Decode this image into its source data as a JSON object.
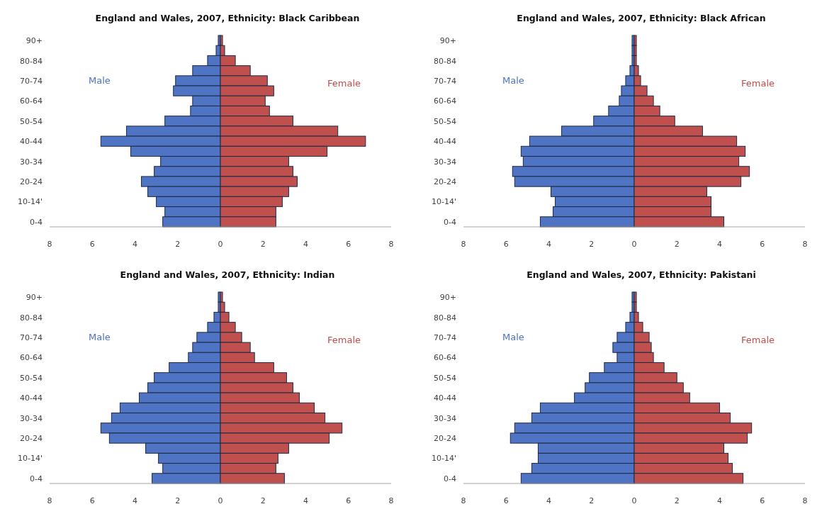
{
  "chart_data": [
    {
      "type": "bar",
      "orientation": "horizontal",
      "stacked": true,
      "title": "England and Wales, 2007, Ethnicity: Black Caribbean",
      "categories": [
        "90+",
        null,
        "80-84",
        null,
        "70-74",
        null,
        "60-64",
        null,
        "50-54",
        null,
        "40-44",
        null,
        "30-34",
        null,
        "20-24",
        null,
        "10-14'",
        null,
        "0-4"
      ],
      "xlim": [
        -8,
        8
      ],
      "xticks": [
        {
          "value": -8,
          "label": "8"
        },
        {
          "value": -6,
          "label": "6"
        },
        {
          "value": -4,
          "label": "4"
        },
        {
          "value": -2,
          "label": "2"
        },
        0,
        2,
        4,
        6,
        8
      ],
      "series": [
        {
          "name": "Male",
          "color": "#4f74c4",
          "values": [
            -0.1,
            -0.2,
            -0.6,
            -1.3,
            -2.1,
            -2.2,
            -1.3,
            -1.4,
            -2.6,
            -4.4,
            -5.6,
            -4.2,
            -2.8,
            -3.1,
            -3.7,
            -3.4,
            -3.0,
            -2.6,
            -2.7
          ]
        },
        {
          "name": "Female",
          "color": "#c0504d",
          "values": [
            0.1,
            0.2,
            0.7,
            1.4,
            2.2,
            2.5,
            2.1,
            2.3,
            3.4,
            5.5,
            6.8,
            5.0,
            3.2,
            3.4,
            3.6,
            3.2,
            2.9,
            2.6,
            2.6
          ]
        }
      ]
    },
    {
      "type": "bar",
      "orientation": "horizontal",
      "stacked": true,
      "title": "England and Wales, 2007, Ethnicity: Black African",
      "categories": [
        "90+",
        null,
        "80-84",
        null,
        "70-74",
        null,
        "60-64",
        null,
        "50-54",
        null,
        "40-44",
        null,
        "30-34",
        null,
        "20-24",
        null,
        "10-14'",
        null,
        "0-4"
      ],
      "xlim": [
        -8,
        8
      ],
      "xticks": [
        {
          "value": -8,
          "label": "8"
        },
        {
          "value": -6,
          "label": "6"
        },
        {
          "value": -4,
          "label": "4"
        },
        {
          "value": -2,
          "label": "2"
        },
        0,
        2,
        4,
        6,
        8
      ],
      "series": [
        {
          "name": "Male",
          "color": "#4f74c4",
          "values": [
            -0.1,
            -0.1,
            -0.1,
            -0.2,
            -0.4,
            -0.6,
            -0.7,
            -1.2,
            -1.9,
            -3.4,
            -4.9,
            -5.3,
            -5.2,
            -5.7,
            -5.6,
            -3.9,
            -3.7,
            -3.8,
            -4.4
          ]
        },
        {
          "name": "Female",
          "color": "#c0504d",
          "values": [
            0.1,
            0.1,
            0.1,
            0.2,
            0.3,
            0.6,
            0.9,
            1.2,
            1.9,
            3.2,
            4.8,
            5.2,
            4.9,
            5.4,
            5.0,
            3.4,
            3.6,
            3.6,
            4.2
          ]
        }
      ]
    },
    {
      "type": "bar",
      "orientation": "horizontal",
      "stacked": true,
      "title": "England and Wales, 2007, Ethnicity: Indian",
      "categories": [
        "90+",
        null,
        "80-84",
        null,
        "70-74",
        null,
        "60-64",
        null,
        "50-54",
        null,
        "40-44",
        null,
        "30-34",
        null,
        "20-24",
        null,
        "10-14'",
        null,
        "0-4"
      ],
      "xlim": [
        -8,
        8
      ],
      "xticks": [
        {
          "value": -8,
          "label": "8"
        },
        {
          "value": -6,
          "label": "6"
        },
        {
          "value": -4,
          "label": "4"
        },
        {
          "value": -2,
          "label": "2"
        },
        0,
        2,
        4,
        6,
        8
      ],
      "series": [
        {
          "name": "Male",
          "color": "#4f74c4",
          "values": [
            -0.1,
            -0.1,
            -0.3,
            -0.6,
            -1.1,
            -1.3,
            -1.5,
            -2.4,
            -3.1,
            -3.4,
            -3.8,
            -4.7,
            -5.1,
            -5.6,
            -5.2,
            -3.5,
            -2.9,
            -2.7,
            -3.2
          ]
        },
        {
          "name": "Female",
          "color": "#c0504d",
          "values": [
            0.1,
            0.2,
            0.4,
            0.7,
            1.0,
            1.4,
            1.6,
            2.5,
            3.1,
            3.4,
            3.7,
            4.4,
            4.9,
            5.7,
            5.1,
            3.2,
            2.7,
            2.6,
            3.0
          ]
        }
      ]
    },
    {
      "type": "bar",
      "orientation": "horizontal",
      "stacked": true,
      "title": "England and Wales, 2007, Ethnicity: Pakistani",
      "categories": [
        "90+",
        null,
        "80-84",
        null,
        "70-74",
        null,
        "60-64",
        null,
        "50-54",
        null,
        "40-44",
        null,
        "30-34",
        null,
        "20-24",
        null,
        "10-14'",
        null,
        "0-4"
      ],
      "xlim": [
        -8,
        8
      ],
      "xticks": [
        {
          "value": -8,
          "label": "8"
        },
        {
          "value": -6,
          "label": "6"
        },
        {
          "value": -4,
          "label": "4"
        },
        {
          "value": -2,
          "label": "2"
        },
        0,
        2,
        4,
        6,
        8
      ],
      "series": [
        {
          "name": "Male",
          "color": "#4f74c4",
          "values": [
            -0.1,
            -0.1,
            -0.2,
            -0.4,
            -0.8,
            -1.0,
            -0.8,
            -1.4,
            -2.1,
            -2.3,
            -2.8,
            -4.4,
            -4.8,
            -5.6,
            -5.8,
            -4.5,
            -4.5,
            -4.8,
            -5.3
          ]
        },
        {
          "name": "Female",
          "color": "#c0504d",
          "values": [
            0.1,
            0.1,
            0.2,
            0.4,
            0.7,
            0.8,
            0.9,
            1.4,
            2.0,
            2.3,
            2.6,
            4.0,
            4.5,
            5.5,
            5.3,
            4.2,
            4.4,
            4.6,
            5.1
          ]
        }
      ]
    }
  ]
}
